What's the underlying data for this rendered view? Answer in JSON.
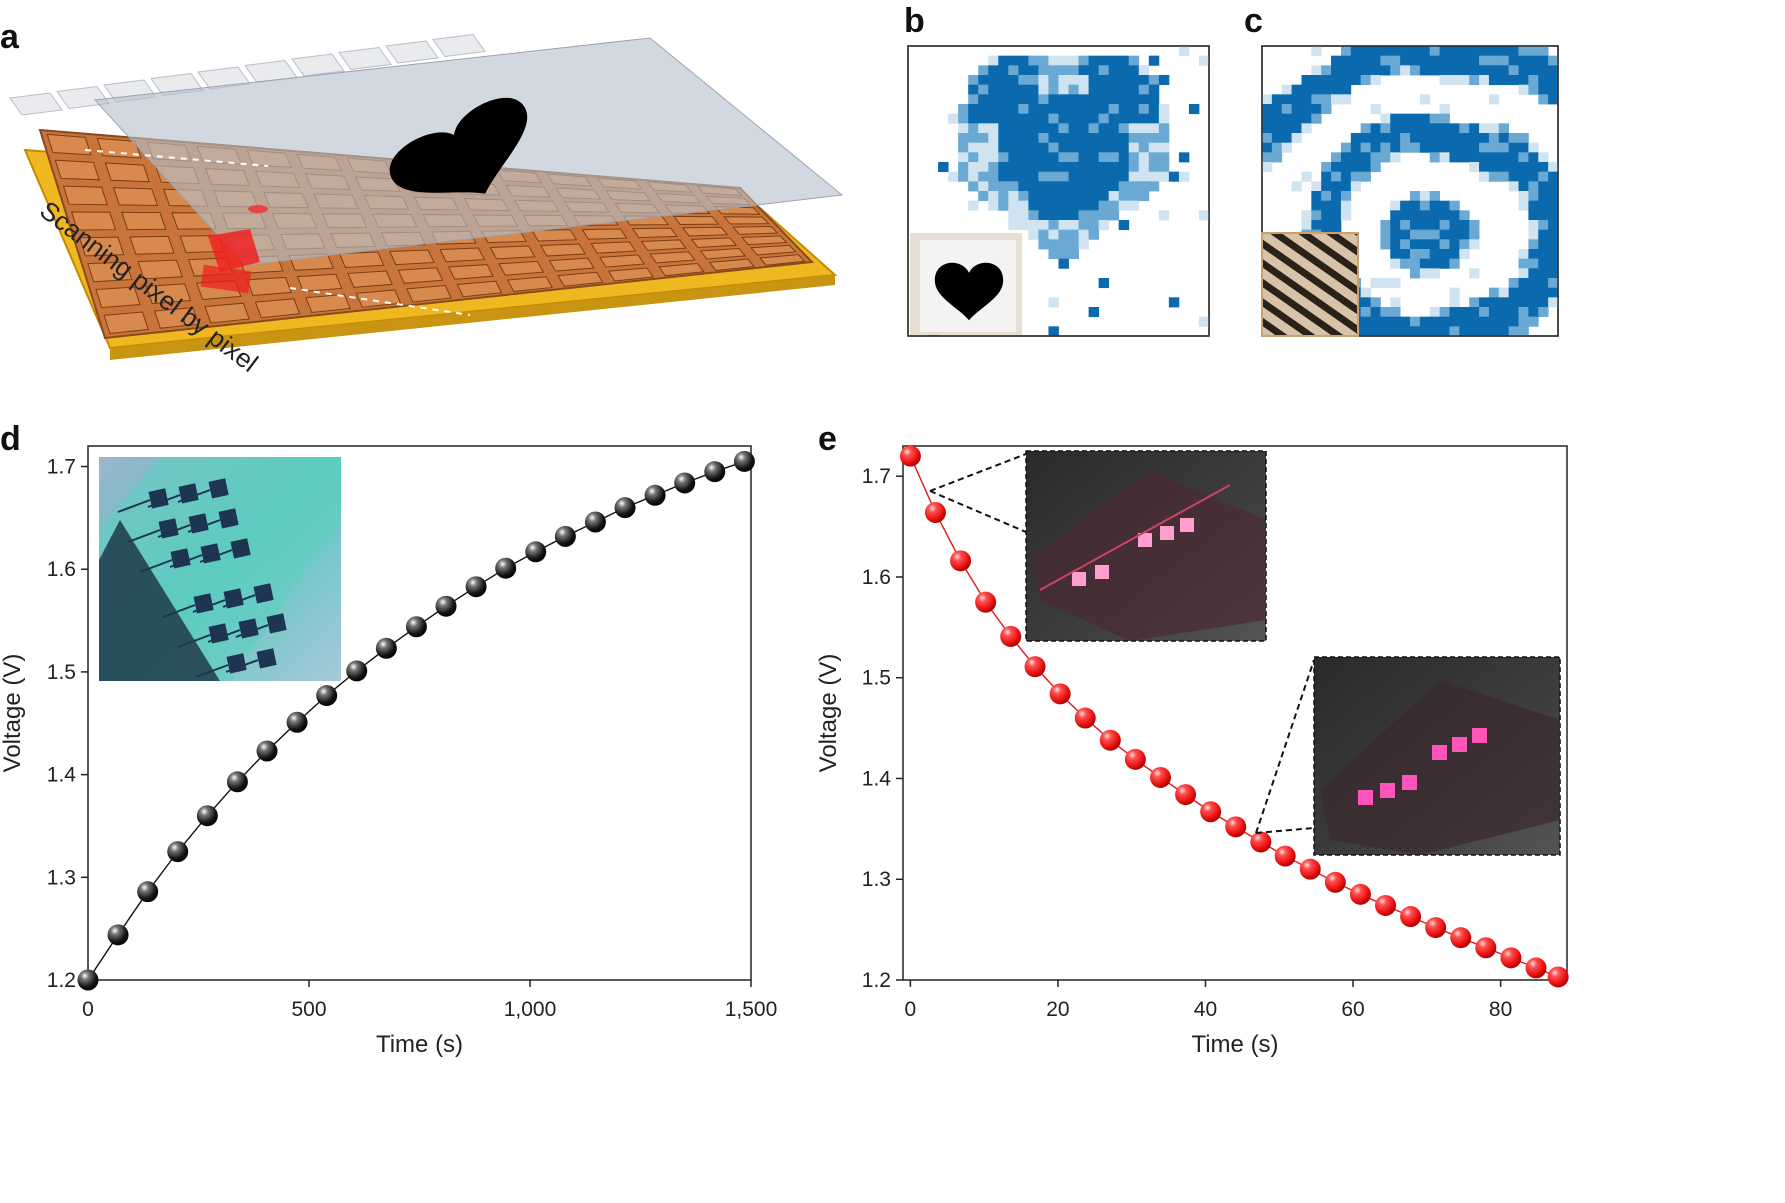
{
  "panel_letters": {
    "a": "a",
    "b": "b",
    "c": "c",
    "d": "d",
    "e": "e"
  },
  "panel_a": {
    "annotation": "Scanning pixel by pixel"
  },
  "colors": {
    "pixel_blue": "#0a6aad",
    "pixel_light_blue": "#6aa9d3",
    "pixel_pale_blue": "#cfe3f0",
    "copper": "#c8743a",
    "gold": "#f0b820",
    "laser_red": "#ee2222",
    "series_black": "#111111",
    "series_red": "#e81818"
  },
  "icons": {
    "heart": "heart-shape",
    "fingerprint": "fingerprint-photo",
    "device_photo": "device-photo"
  },
  "chart_data": [
    {
      "panel": "d",
      "type": "scatter",
      "xlabel": "Time (s)",
      "ylabel": "Voltage (V)",
      "xlim": [
        0,
        1500
      ],
      "ylim": [
        1.2,
        1.72
      ],
      "xticks": [
        0,
        500,
        1000,
        1500
      ],
      "xtick_labels": [
        "0",
        "500",
        "1,000",
        "1,500"
      ],
      "yticks": [
        1.2,
        1.3,
        1.4,
        1.5,
        1.6,
        1.7
      ],
      "ytick_labels": [
        "1.2",
        "1.3",
        "1.4",
        "1.5",
        "1.6",
        "1.7"
      ],
      "series": [
        {
          "color": "#111111",
          "x": [
            0,
            68,
            135,
            203,
            270,
            338,
            405,
            473,
            540,
            608,
            675,
            743,
            810,
            878,
            945,
            1013,
            1080,
            1148,
            1215,
            1283,
            1350,
            1418,
            1485
          ],
          "y": [
            1.2,
            1.244,
            1.286,
            1.325,
            1.36,
            1.393,
            1.423,
            1.451,
            1.477,
            1.501,
            1.523,
            1.544,
            1.564,
            1.583,
            1.601,
            1.617,
            1.632,
            1.646,
            1.66,
            1.672,
            1.684,
            1.695,
            1.705
          ]
        }
      ]
    },
    {
      "panel": "e",
      "type": "scatter",
      "xlabel": "Time (s)",
      "ylabel": "Voltage (V)",
      "xlim": [
        -1,
        89
      ],
      "ylim": [
        1.2,
        1.73
      ],
      "xticks": [
        0,
        20,
        40,
        60,
        80
      ],
      "xtick_labels": [
        "0",
        "20",
        "40",
        "60",
        "80"
      ],
      "yticks": [
        1.2,
        1.3,
        1.4,
        1.5,
        1.6,
        1.7
      ],
      "ytick_labels": [
        "1.2",
        "1.3",
        "1.4",
        "1.5",
        "1.6",
        "1.7"
      ],
      "series": [
        {
          "color": "#e81818",
          "x": [
            0,
            3.4,
            6.8,
            10.2,
            13.6,
            16.9,
            20.3,
            23.7,
            27.1,
            30.5,
            33.9,
            37.3,
            40.7,
            44.1,
            47.5,
            50.8,
            54.2,
            57.6,
            61,
            64.4,
            67.8,
            71.2,
            74.6,
            78,
            81.4,
            84.8,
            87.8
          ],
          "y": [
            1.72,
            1.664,
            1.616,
            1.575,
            1.541,
            1.511,
            1.484,
            1.46,
            1.438,
            1.419,
            1.401,
            1.384,
            1.367,
            1.352,
            1.337,
            1.323,
            1.31,
            1.297,
            1.285,
            1.274,
            1.263,
            1.252,
            1.242,
            1.232,
            1.222,
            1.212,
            1.203
          ]
        }
      ]
    }
  ]
}
